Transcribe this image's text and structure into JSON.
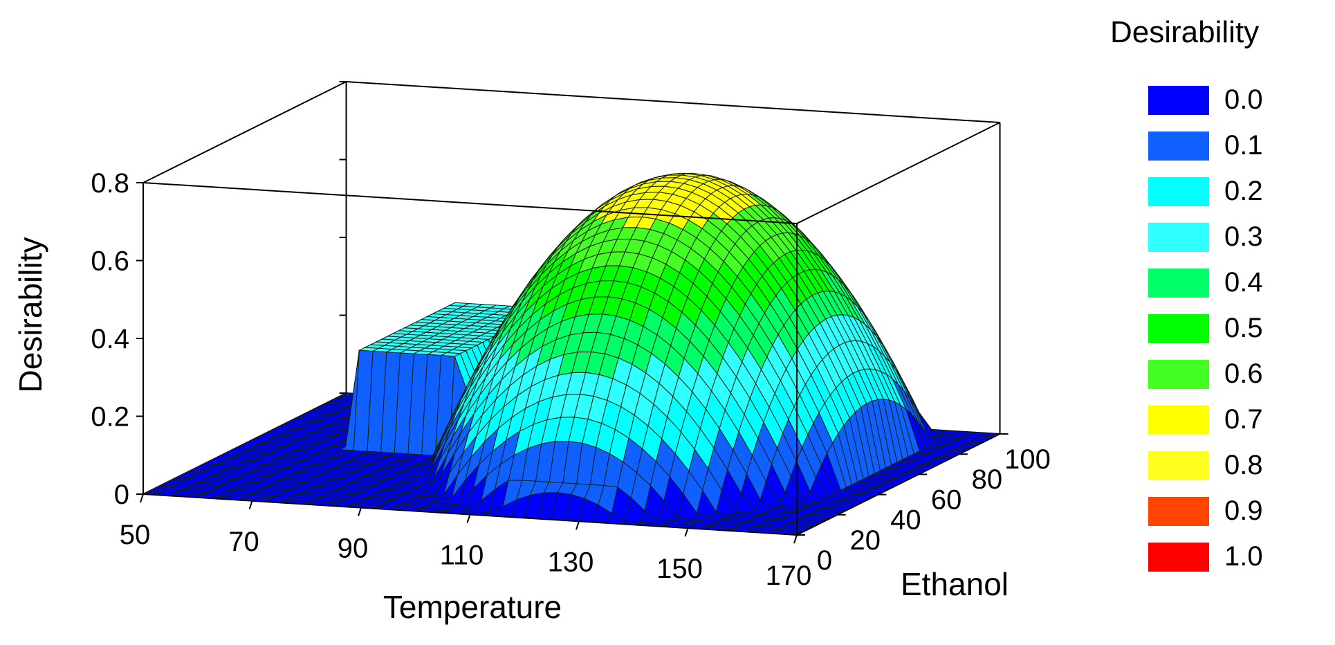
{
  "chart_data": {
    "type": "surface",
    "zlabel": "Desirability",
    "xlabel": "Temperature",
    "ylabel": "Ethanol",
    "x_ticks": [
      "50",
      "70",
      "90",
      "110",
      "130",
      "150",
      "170"
    ],
    "y_ticks": [
      "0",
      "20",
      "40",
      "60",
      "80",
      "100"
    ],
    "z_ticks": [
      "0",
      "0.2",
      "0.4",
      "0.6",
      "0.8"
    ],
    "xlim": [
      50,
      170
    ],
    "ylim": [
      0,
      100
    ],
    "zlim": [
      0,
      0.8
    ],
    "surface_peak": {
      "temperature": 130,
      "ethanol": 60,
      "desirability": 0.72
    },
    "regions": [
      {
        "description_temperature_range": [
          50,
          90
        ],
        "desirability": 0.0
      },
      {
        "description_temperature_range": [
          90,
          160
        ],
        "desirability_max": 0.72
      },
      {
        "description_temperature_range": [
          160,
          170
        ],
        "desirability": 0.0
      }
    ],
    "legend": {
      "title": "Desirability",
      "items": [
        {
          "label": "0.0",
          "color": "#0000ff"
        },
        {
          "label": "0.1",
          "color": "#1060ff"
        },
        {
          "label": "0.2",
          "color": "#00ffff"
        },
        {
          "label": "0.3",
          "color": "#30ffff"
        },
        {
          "label": "0.4",
          "color": "#00ff66"
        },
        {
          "label": "0.5",
          "color": "#00ff00"
        },
        {
          "label": "0.6",
          "color": "#44ff22"
        },
        {
          "label": "0.7",
          "color": "#ffff00"
        },
        {
          "label": "0.8",
          "color": "#ffff22"
        },
        {
          "label": "0.9",
          "color": "#ff4400"
        },
        {
          "label": "1.0",
          "color": "#ff0000"
        }
      ],
      "position": "right"
    }
  }
}
